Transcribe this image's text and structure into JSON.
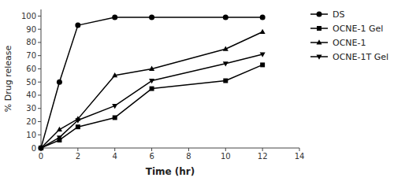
{
  "chart_data": {
    "type": "line",
    "xlabel": "Time (hr)",
    "ylabel": "% Drug release",
    "x": [
      0,
      1,
      2,
      4,
      6,
      10,
      12
    ],
    "series": [
      {
        "name": "DS",
        "color": "#000000",
        "marker": "circle",
        "values": [
          0,
          50,
          93,
          99,
          99,
          99,
          99
        ]
      },
      {
        "name": "OCNE-1 Gel",
        "color": "#000000",
        "marker": "square",
        "values": [
          0,
          6,
          16,
          23,
          45,
          51,
          63
        ]
      },
      {
        "name": "OCNE-1",
        "color": "#000000",
        "marker": "triangle-up",
        "values": [
          0,
          14,
          22,
          55,
          60,
          75,
          88
        ]
      },
      {
        "name": "OCNE-1T Gel",
        "color": "#000000",
        "marker": "triangle-down",
        "values": [
          0,
          8,
          21,
          32,
          51,
          64,
          71
        ]
      }
    ],
    "xlim": [
      0,
      14
    ],
    "ylim": [
      0,
      105
    ],
    "xticks": [
      0,
      2,
      4,
      6,
      8,
      10,
      12,
      14
    ],
    "yticks": [
      0,
      10,
      20,
      30,
      40,
      50,
      60,
      70,
      80,
      90,
      100
    ],
    "grid": false,
    "legend": "right"
  }
}
